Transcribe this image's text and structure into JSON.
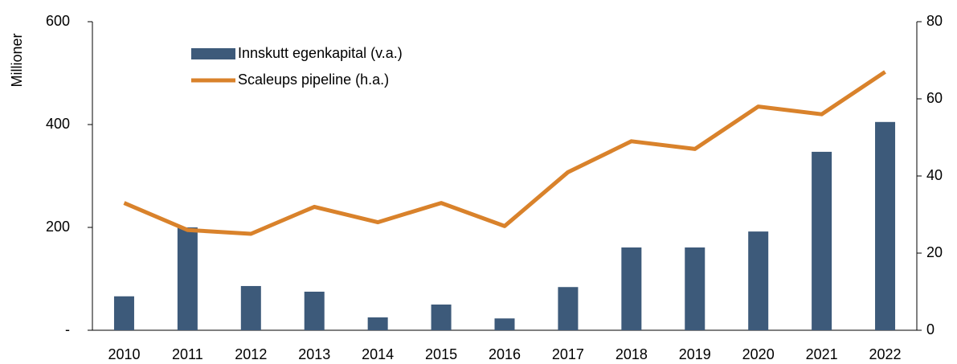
{
  "chart_data": {
    "type": "bar+line",
    "y_label": "Millioner",
    "categories": [
      "2010",
      "2011",
      "2012",
      "2013",
      "2014",
      "2015",
      "2016",
      "2017",
      "2018",
      "2019",
      "2020",
      "2021",
      "2022"
    ],
    "series": [
      {
        "name": "Innskutt egenkapital (v.a.)",
        "type": "bar",
        "color": "#3d5a7a",
        "axis": "y",
        "values": [
          66,
          200,
          86,
          75,
          25,
          50,
          23,
          84,
          161,
          161,
          192,
          347,
          405
        ]
      },
      {
        "name": "Scaleups pipeline (h.a.)",
        "type": "line",
        "color": "#d9822b",
        "axis": "y2",
        "values": [
          33,
          26,
          25,
          32,
          28,
          33,
          27,
          41,
          49,
          47,
          58,
          56,
          67
        ]
      }
    ],
    "ylim": [
      0,
      600
    ],
    "yticks": [
      {
        "value": 0,
        "label": "-"
      },
      200,
      400,
      600
    ],
    "y2lim": [
      0,
      80
    ],
    "y2ticks": [
      0,
      20,
      40,
      60,
      80
    ],
    "legend": "top-left"
  }
}
